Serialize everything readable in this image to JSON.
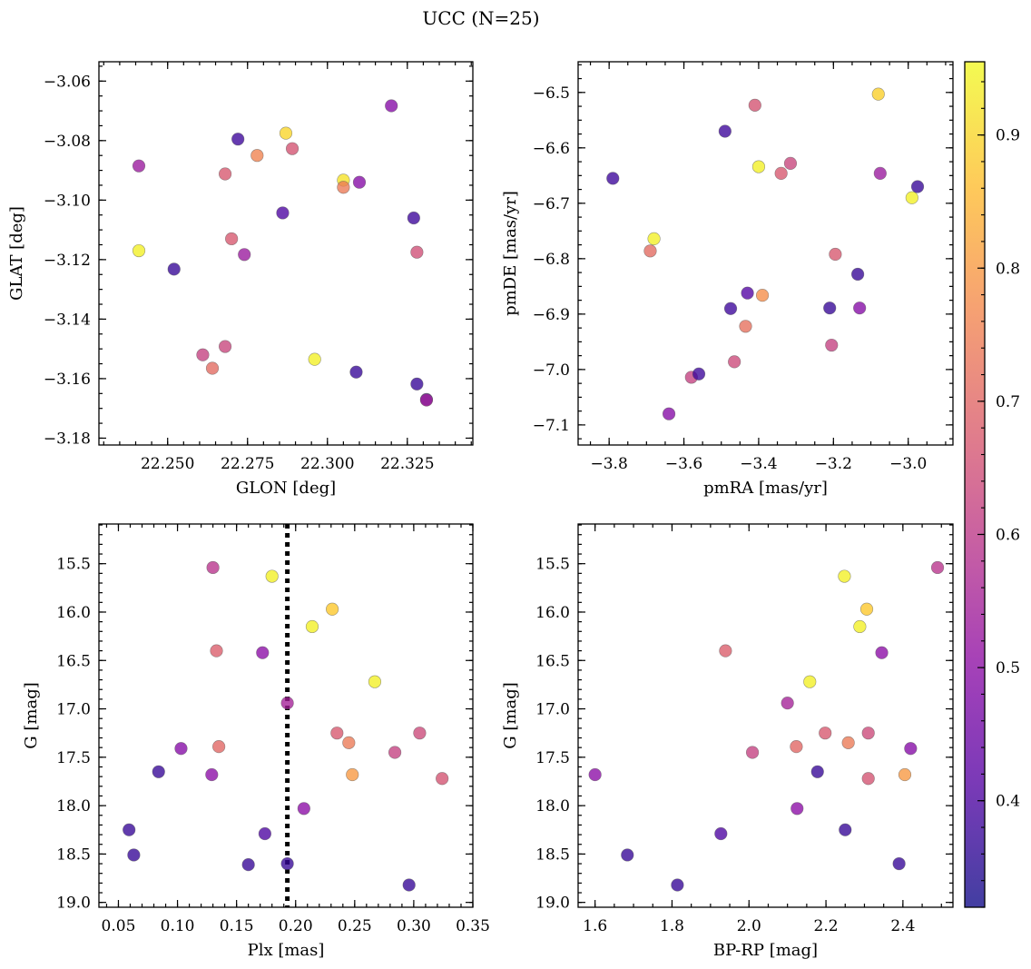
{
  "figure_title": "UCC (N=25)",
  "colormap": [
    "#0d0887",
    "#5302a3",
    "#8b0aa5",
    "#b83289",
    "#db5c68",
    "#f48849",
    "#febd2a",
    "#f0f921"
  ],
  "colorbar": {
    "range": [
      0.32,
      0.955
    ],
    "ticks": [
      0.4,
      0.5,
      0.6,
      0.7,
      0.8,
      0.9
    ],
    "tick_labels": [
      "0.4",
      "0.5",
      "0.6",
      "0.7",
      "0.8",
      "0.9"
    ]
  },
  "marker": {
    "alpha": 0.78,
    "edge_color": "#555555"
  },
  "chart_data": [
    {
      "type": "scatter",
      "xlabel": "GLON [deg]",
      "ylabel": "GLAT [deg]",
      "xlim": [
        22.2285,
        22.3455
      ],
      "ylim": [
        -3.1823,
        -3.0535
      ],
      "xticks": [
        22.25,
        22.275,
        22.3,
        22.325
      ],
      "xtick_labels": [
        "22.250",
        "22.275",
        "22.300",
        "22.325"
      ],
      "yticks": [
        -3.18,
        -3.16,
        -3.14,
        -3.12,
        -3.1,
        -3.08,
        -3.06
      ],
      "ytick_labels": [
        "−3.18",
        "−3.16",
        "−3.14",
        "−3.12",
        "−3.10",
        "−3.08",
        "−3.06"
      ],
      "x_minor_step": 0.005,
      "y_minor_step": 0.005,
      "points": [
        {
          "x": 22.241,
          "y": -3.117,
          "c": 0.94
        },
        {
          "x": 22.252,
          "y": -3.1232,
          "c": 0.37
        },
        {
          "x": 22.241,
          "y": -3.0885,
          "c": 0.53
        },
        {
          "x": 22.261,
          "y": -3.152,
          "c": 0.62
        },
        {
          "x": 22.264,
          "y": -3.1565,
          "c": 0.71
        },
        {
          "x": 22.268,
          "y": -3.1492,
          "c": 0.63
        },
        {
          "x": 22.268,
          "y": -3.0912,
          "c": 0.67
        },
        {
          "x": 22.27,
          "y": -3.113,
          "c": 0.67
        },
        {
          "x": 22.272,
          "y": -3.0795,
          "c": 0.38
        },
        {
          "x": 22.274,
          "y": -3.1183,
          "c": 0.53
        },
        {
          "x": 22.278,
          "y": -3.085,
          "c": 0.76
        },
        {
          "x": 22.286,
          "y": -3.1043,
          "c": 0.4
        },
        {
          "x": 22.287,
          "y": -3.0775,
          "c": 0.9
        },
        {
          "x": 22.289,
          "y": -3.0827,
          "c": 0.66
        },
        {
          "x": 22.296,
          "y": -3.1535,
          "c": 0.94
        },
        {
          "x": 22.305,
          "y": -3.0933,
          "c": 0.92
        },
        {
          "x": 22.305,
          "y": -3.0957,
          "c": 0.74
        },
        {
          "x": 22.309,
          "y": -3.1578,
          "c": 0.37
        },
        {
          "x": 22.31,
          "y": -3.094,
          "c": 0.49
        },
        {
          "x": 22.32,
          "y": -3.0683,
          "c": 0.49
        },
        {
          "x": 22.327,
          "y": -3.106,
          "c": 0.38
        },
        {
          "x": 22.328,
          "y": -3.1175,
          "c": 0.65
        },
        {
          "x": 22.328,
          "y": -3.1618,
          "c": 0.37
        },
        {
          "x": 22.331,
          "y": -3.167,
          "c": 0.37
        },
        {
          "x": 22.331,
          "y": -3.1672,
          "c": 0.55
        }
      ]
    },
    {
      "type": "scatter",
      "xlabel": "pmRA [mas/yr]",
      "ylabel": "pmDE [mas/yr]",
      "xlim": [
        -3.8829,
        -2.8804
      ],
      "ylim": [
        -7.1362,
        -6.4446
      ],
      "xticks": [
        -3.8,
        -3.6,
        -3.4,
        -3.2,
        -3.0
      ],
      "xtick_labels": [
        "−3.8",
        "−3.6",
        "−3.4",
        "−3.2",
        "−3.0"
      ],
      "yticks": [
        -7.1,
        -7.0,
        -6.9,
        -6.8,
        -6.7,
        -6.6,
        -6.5
      ],
      "ytick_labels": [
        "−7.1",
        "−7.0",
        "−6.9",
        "−6.8",
        "−6.7",
        "−6.6",
        "−6.5"
      ],
      "x_minor_step": 0.05,
      "y_minor_step": 0.025,
      "points": [
        {
          "x": -3.79,
          "y": -6.655,
          "c": 0.38
        },
        {
          "x": -3.69,
          "y": -6.786,
          "c": 0.71
        },
        {
          "x": -3.68,
          "y": -6.764,
          "c": 0.94
        },
        {
          "x": -3.64,
          "y": -7.08,
          "c": 0.49
        },
        {
          "x": -3.58,
          "y": -7.014,
          "c": 0.62
        },
        {
          "x": -3.56,
          "y": -7.008,
          "c": 0.38
        },
        {
          "x": -3.49,
          "y": -6.57,
          "c": 0.38
        },
        {
          "x": -3.475,
          "y": -6.89,
          "c": 0.38
        },
        {
          "x": -3.465,
          "y": -6.986,
          "c": 0.64
        },
        {
          "x": -3.43,
          "y": -6.862,
          "c": 0.41
        },
        {
          "x": -3.435,
          "y": -6.922,
          "c": 0.72
        },
        {
          "x": -3.41,
          "y": -6.523,
          "c": 0.66
        },
        {
          "x": -3.4,
          "y": -6.634,
          "c": 0.94
        },
        {
          "x": -3.39,
          "y": -6.866,
          "c": 0.78
        },
        {
          "x": -3.34,
          "y": -6.646,
          "c": 0.67
        },
        {
          "x": -3.315,
          "y": -6.628,
          "c": 0.63
        },
        {
          "x": -3.21,
          "y": -6.889,
          "c": 0.37
        },
        {
          "x": -3.205,
          "y": -6.956,
          "c": 0.62
        },
        {
          "x": -3.195,
          "y": -6.792,
          "c": 0.67
        },
        {
          "x": -3.135,
          "y": -6.828,
          "c": 0.37
        },
        {
          "x": -3.13,
          "y": -6.889,
          "c": 0.49
        },
        {
          "x": -3.08,
          "y": -6.503,
          "c": 0.89
        },
        {
          "x": -3.075,
          "y": -6.646,
          "c": 0.53
        },
        {
          "x": -2.99,
          "y": -6.69,
          "c": 0.94
        },
        {
          "x": -2.975,
          "y": -6.67,
          "c": 0.37
        }
      ]
    },
    {
      "type": "scatter",
      "xlabel": "Plx [mas]",
      "ylabel": "G [mag]",
      "xlim": [
        0.0335,
        0.35
      ],
      "ylim": [
        19.05,
        15.09
      ],
      "xticks": [
        0.05,
        0.1,
        0.15,
        0.2,
        0.25,
        0.3,
        0.35
      ],
      "xtick_labels": [
        "0.05",
        "0.10",
        "0.15",
        "0.20",
        "0.25",
        "0.30",
        "0.35"
      ],
      "yticks": [
        15.5,
        16.0,
        16.5,
        17.0,
        17.5,
        18.0,
        18.5,
        19.0
      ],
      "ytick_labels": [
        "15.5",
        "16.0",
        "16.5",
        "17.0",
        "17.5",
        "18.0",
        "18.5",
        "19.0"
      ],
      "x_minor_step": 0.01,
      "y_minor_step": 0.1,
      "vline_x": 0.193,
      "points": [
        {
          "x": 0.059,
          "y": 18.25,
          "c": 0.37
        },
        {
          "x": 0.063,
          "y": 18.51,
          "c": 0.37
        },
        {
          "x": 0.084,
          "y": 17.65,
          "c": 0.37
        },
        {
          "x": 0.103,
          "y": 17.41,
          "c": 0.49
        },
        {
          "x": 0.129,
          "y": 17.68,
          "c": 0.5
        },
        {
          "x": 0.13,
          "y": 15.54,
          "c": 0.59
        },
        {
          "x": 0.133,
          "y": 16.4,
          "c": 0.68
        },
        {
          "x": 0.135,
          "y": 17.39,
          "c": 0.7
        },
        {
          "x": 0.16,
          "y": 18.61,
          "c": 0.37
        },
        {
          "x": 0.172,
          "y": 16.42,
          "c": 0.5
        },
        {
          "x": 0.174,
          "y": 18.29,
          "c": 0.4
        },
        {
          "x": 0.18,
          "y": 15.63,
          "c": 0.94
        },
        {
          "x": 0.193,
          "y": 16.94,
          "c": 0.55
        },
        {
          "x": 0.193,
          "y": 18.6,
          "c": 0.37
        },
        {
          "x": 0.207,
          "y": 18.03,
          "c": 0.5
        },
        {
          "x": 0.214,
          "y": 16.15,
          "c": 0.94
        },
        {
          "x": 0.231,
          "y": 15.97,
          "c": 0.88
        },
        {
          "x": 0.235,
          "y": 17.25,
          "c": 0.67
        },
        {
          "x": 0.245,
          "y": 17.35,
          "c": 0.74
        },
        {
          "x": 0.248,
          "y": 17.68,
          "c": 0.8
        },
        {
          "x": 0.267,
          "y": 16.72,
          "c": 0.94
        },
        {
          "x": 0.284,
          "y": 17.45,
          "c": 0.62
        },
        {
          "x": 0.296,
          "y": 18.82,
          "c": 0.37
        },
        {
          "x": 0.305,
          "y": 17.25,
          "c": 0.64
        },
        {
          "x": 0.324,
          "y": 17.72,
          "c": 0.66
        }
      ]
    },
    {
      "type": "scatter",
      "xlabel": "BP-RP [mag]",
      "ylabel": "G [mag]",
      "xlim": [
        1.556,
        2.53
      ],
      "ylim": [
        19.05,
        15.09
      ],
      "xticks": [
        1.6,
        1.8,
        2.0,
        2.2,
        2.4
      ],
      "xtick_labels": [
        "1.6",
        "1.8",
        "2.0",
        "2.2",
        "2.4"
      ],
      "yticks": [
        15.5,
        16.0,
        16.5,
        17.0,
        17.5,
        18.0,
        18.5,
        19.0
      ],
      "ytick_labels": [
        "15.5",
        "16.0",
        "16.5",
        "17.0",
        "17.5",
        "18.0",
        "18.5",
        "19.0"
      ],
      "x_minor_step": 0.05,
      "y_minor_step": 0.1,
      "points": [
        {
          "x": 1.6,
          "y": 17.68,
          "c": 0.5
        },
        {
          "x": 1.684,
          "y": 18.51,
          "c": 0.37
        },
        {
          "x": 1.814,
          "y": 18.82,
          "c": 0.37
        },
        {
          "x": 1.927,
          "y": 18.29,
          "c": 0.4
        },
        {
          "x": 1.939,
          "y": 16.4,
          "c": 0.68
        },
        {
          "x": 2.009,
          "y": 17.45,
          "c": 0.62
        },
        {
          "x": 2.1,
          "y": 16.94,
          "c": 0.55
        },
        {
          "x": 2.123,
          "y": 17.39,
          "c": 0.7
        },
        {
          "x": 2.125,
          "y": 18.03,
          "c": 0.5
        },
        {
          "x": 2.158,
          "y": 16.72,
          "c": 0.94
        },
        {
          "x": 2.178,
          "y": 17.65,
          "c": 0.37
        },
        {
          "x": 2.198,
          "y": 17.25,
          "c": 0.67
        },
        {
          "x": 2.248,
          "y": 15.63,
          "c": 0.94
        },
        {
          "x": 2.25,
          "y": 18.25,
          "c": 0.37
        },
        {
          "x": 2.258,
          "y": 17.35,
          "c": 0.74
        },
        {
          "x": 2.288,
          "y": 16.15,
          "c": 0.94
        },
        {
          "x": 2.306,
          "y": 15.97,
          "c": 0.88
        },
        {
          "x": 2.31,
          "y": 17.25,
          "c": 0.64
        },
        {
          "x": 2.31,
          "y": 17.72,
          "c": 0.66
        },
        {
          "x": 2.345,
          "y": 16.42,
          "c": 0.5
        },
        {
          "x": 2.39,
          "y": 18.6,
          "c": 0.37
        },
        {
          "x": 2.405,
          "y": 17.68,
          "c": 0.8
        },
        {
          "x": 2.42,
          "y": 17.41,
          "c": 0.49
        },
        {
          "x": 2.49,
          "y": 15.54,
          "c": 0.59
        }
      ]
    }
  ]
}
